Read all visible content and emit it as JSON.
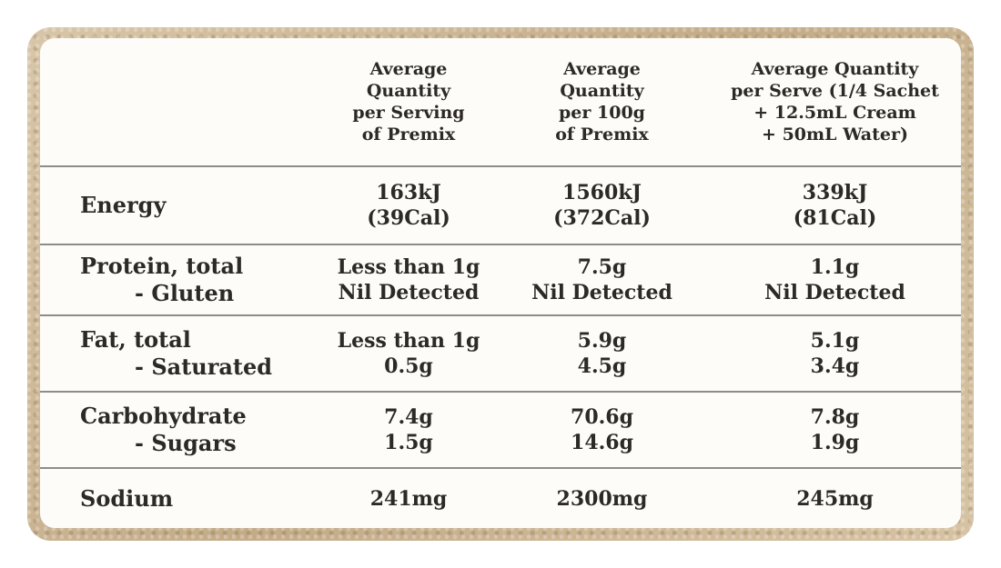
{
  "header": {
    "col1": [
      "Average",
      "Quantity",
      "per Serving",
      "of Premix"
    ],
    "col2": [
      "Average",
      "Quantity",
      "per 100g",
      "of Premix"
    ],
    "col3": [
      "Average Quantity",
      "per Serve (1/4 Sachet",
      "+ 12.5mL Cream",
      "+ 50mL Water)"
    ]
  },
  "rows": {
    "energy": {
      "label": [
        "Energy"
      ],
      "col1": [
        "163kJ",
        "(39Cal)"
      ],
      "col2": [
        "1560kJ",
        "(372Cal)"
      ],
      "col3": [
        "339kJ",
        "(81Cal)"
      ]
    },
    "protein": {
      "label": [
        "Protein, total",
        "- Gluten"
      ],
      "col1": [
        "Less than 1g",
        "Nil Detected"
      ],
      "col2": [
        "7.5g",
        "Nil Detected"
      ],
      "col3": [
        "1.1g",
        "Nil Detected"
      ]
    },
    "fat": {
      "label": [
        "Fat, total",
        "- Saturated"
      ],
      "col1": [
        "Less than 1g",
        "0.5g"
      ],
      "col2": [
        "5.9g",
        "4.5g"
      ],
      "col3": [
        "5.1g",
        "3.4g"
      ]
    },
    "carbohydrate": {
      "label": [
        "Carbohydrate",
        "- Sugars"
      ],
      "col1": [
        "7.4g",
        "1.5g"
      ],
      "col2": [
        "70.6g",
        "14.6g"
      ],
      "col3": [
        "7.8g",
        "1.9g"
      ]
    },
    "sodium": {
      "label": [
        "Sodium"
      ],
      "col1": [
        "241mg"
      ],
      "col2": [
        "2300mg"
      ],
      "col3": [
        "245mg"
      ]
    }
  }
}
